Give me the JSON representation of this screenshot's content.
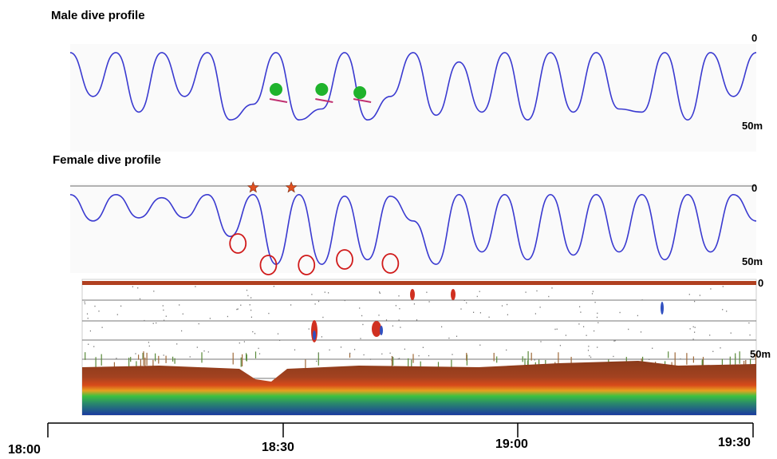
{
  "chart_data": [
    {
      "type": "line",
      "title": "Male dive profile",
      "ylabels": {
        "top": "0",
        "bottom": "50m"
      },
      "ylim": [
        50,
        0
      ],
      "x": [
        "18:00",
        "18:03",
        "18:06",
        "18:09",
        "18:12",
        "18:15",
        "18:18",
        "18:21",
        "18:24",
        "18:27",
        "18:30",
        "18:33",
        "18:36",
        "18:39",
        "18:42",
        "18:45",
        "18:48",
        "18:51",
        "18:54",
        "18:57",
        "19:00",
        "19:03",
        "19:06",
        "19:09",
        "19:12",
        "19:15",
        "19:18",
        "19:21",
        "19:24",
        "19:27",
        "19:30"
      ],
      "series": [
        {
          "color": "#3a3ad0",
          "values": [
            2,
            30,
            2,
            40,
            2,
            30,
            2,
            45,
            35,
            2,
            45,
            38,
            2,
            45,
            30,
            2,
            42,
            8,
            40,
            2,
            45,
            2,
            40,
            2,
            38,
            40,
            2,
            45,
            2,
            30,
            2
          ]
        }
      ],
      "markers": {
        "shape": "circle",
        "color": "#1fb32c",
        "times": [
          "18:27",
          "18:33",
          "18:38"
        ]
      }
    },
    {
      "type": "line",
      "title": "Female dive profile",
      "ylabels": {
        "top": "0",
        "bottom": "50m"
      },
      "ylim": [
        50,
        0
      ],
      "x": [
        "18:00",
        "18:03",
        "18:06",
        "18:09",
        "18:12",
        "18:15",
        "18:18",
        "18:21",
        "18:24",
        "18:27",
        "18:30",
        "18:33",
        "18:36",
        "18:39",
        "18:42",
        "18:45",
        "18:48",
        "18:51",
        "18:54",
        "18:57",
        "19:00",
        "19:03",
        "19:06",
        "19:09",
        "19:12",
        "19:15",
        "19:18",
        "19:21",
        "19:24",
        "19:27",
        "19:30"
      ],
      "series": [
        {
          "color": "#3a3ad0",
          "values": [
            3,
            20,
            3,
            18,
            5,
            18,
            3,
            30,
            3,
            48,
            3,
            48,
            4,
            45,
            4,
            20,
            48,
            3,
            40,
            3,
            45,
            3,
            42,
            3,
            40,
            3,
            45,
            3,
            40,
            3,
            20
          ]
        }
      ],
      "star_markers": {
        "color": "#e05020",
        "times": [
          "18:24",
          "18:29"
        ]
      },
      "circle_markers": {
        "color": "#d01a1a",
        "times": [
          "18:22",
          "18:26",
          "18:31",
          "18:36",
          "18:42"
        ]
      }
    },
    {
      "type": "heatmap",
      "ylabels": {
        "top": "0",
        "bottom": "50m"
      },
      "grid": true
    }
  ],
  "time_axis": {
    "ticks": [
      "18:00",
      "18:30",
      "19:00",
      "19:30"
    ]
  }
}
